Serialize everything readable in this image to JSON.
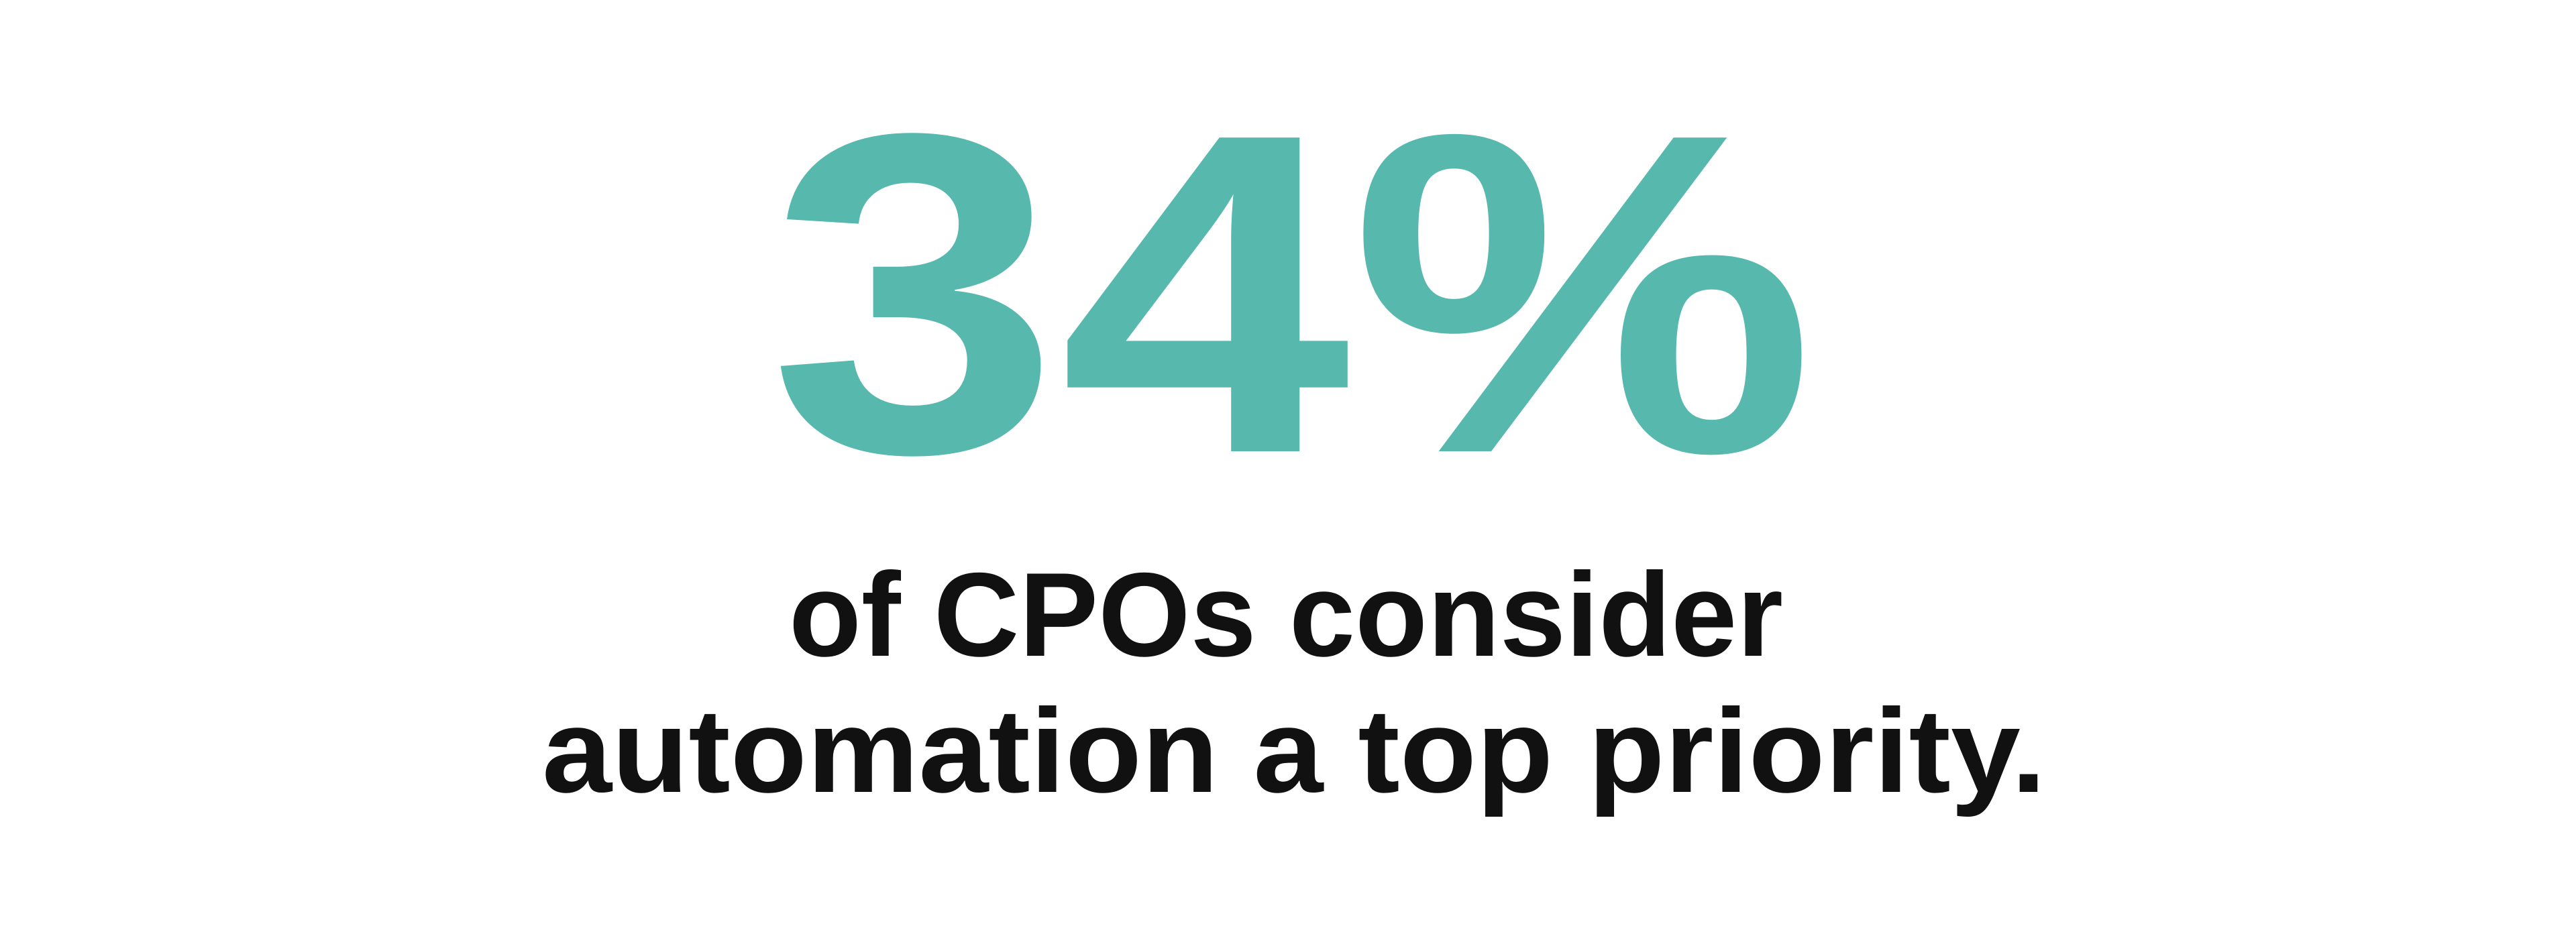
{
  "stat": {
    "value": "34%",
    "caption_line1": "of CPOs consider",
    "caption_line2": "automation a top priority."
  },
  "colors": {
    "accent": "#57b8ae",
    "text": "#111111",
    "background": "#ffffff"
  }
}
